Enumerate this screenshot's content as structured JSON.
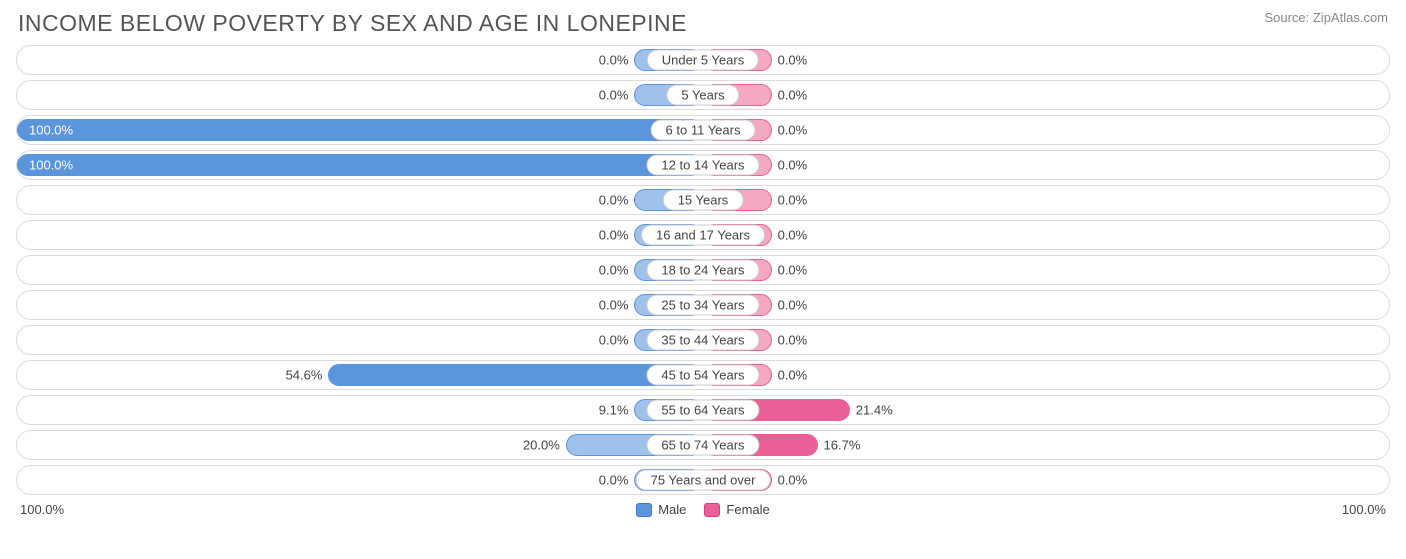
{
  "title": "INCOME BELOW POVERTY BY SEX AND AGE IN LONEPINE",
  "source": "Source: ZipAtlas.com",
  "axis": {
    "left_label": "100.0%",
    "right_label": "100.0%",
    "max_pct": 100.0
  },
  "style": {
    "male_fill": "#a0c1ea",
    "male_border": "#5b95db",
    "male_full_fill": "#5b95db",
    "female_fill": "#f5a8c2",
    "female_border": "#e95f96",
    "female_full_fill": "#e95f96",
    "row_border": "#dcdcdc",
    "row_bg": "#ffffff",
    "min_bar_pct": 10.0,
    "label_fontsize": 13,
    "title_fontsize": 23,
    "title_color": "#555555",
    "text_color": "#444444",
    "source_color": "#888888"
  },
  "legend": [
    {
      "label": "Male",
      "fill": "#5b95db",
      "border": "#3f77bf"
    },
    {
      "label": "Female",
      "fill": "#e95f96",
      "border": "#d33d7a"
    }
  ],
  "rows": [
    {
      "category": "Under 5 Years",
      "male_pct": 0.0,
      "male_label": "0.0%",
      "female_pct": 0.0,
      "female_label": "0.0%"
    },
    {
      "category": "5 Years",
      "male_pct": 0.0,
      "male_label": "0.0%",
      "female_pct": 0.0,
      "female_label": "0.0%"
    },
    {
      "category": "6 to 11 Years",
      "male_pct": 100.0,
      "male_label": "100.0%",
      "female_pct": 0.0,
      "female_label": "0.0%"
    },
    {
      "category": "12 to 14 Years",
      "male_pct": 100.0,
      "male_label": "100.0%",
      "female_pct": 0.0,
      "female_label": "0.0%"
    },
    {
      "category": "15 Years",
      "male_pct": 0.0,
      "male_label": "0.0%",
      "female_pct": 0.0,
      "female_label": "0.0%"
    },
    {
      "category": "16 and 17 Years",
      "male_pct": 0.0,
      "male_label": "0.0%",
      "female_pct": 0.0,
      "female_label": "0.0%"
    },
    {
      "category": "18 to 24 Years",
      "male_pct": 0.0,
      "male_label": "0.0%",
      "female_pct": 0.0,
      "female_label": "0.0%"
    },
    {
      "category": "25 to 34 Years",
      "male_pct": 0.0,
      "male_label": "0.0%",
      "female_pct": 0.0,
      "female_label": "0.0%"
    },
    {
      "category": "35 to 44 Years",
      "male_pct": 0.0,
      "male_label": "0.0%",
      "female_pct": 0.0,
      "female_label": "0.0%"
    },
    {
      "category": "45 to 54 Years",
      "male_pct": 54.6,
      "male_label": "54.6%",
      "female_pct": 0.0,
      "female_label": "0.0%"
    },
    {
      "category": "55 to 64 Years",
      "male_pct": 9.1,
      "male_label": "9.1%",
      "female_pct": 21.4,
      "female_label": "21.4%"
    },
    {
      "category": "65 to 74 Years",
      "male_pct": 20.0,
      "male_label": "20.0%",
      "female_pct": 16.7,
      "female_label": "16.7%"
    },
    {
      "category": "75 Years and over",
      "male_pct": 0.0,
      "male_label": "0.0%",
      "female_pct": 0.0,
      "female_label": "0.0%"
    }
  ]
}
